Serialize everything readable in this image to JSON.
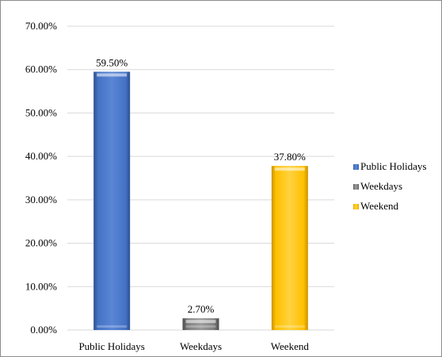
{
  "chart_data": {
    "type": "bar",
    "categories": [
      "Public Holidays",
      "Weekdays",
      "Weekend"
    ],
    "values": [
      59.5,
      2.7,
      37.8
    ],
    "data_labels": [
      "59.50%",
      "2.70%",
      "37.80%"
    ],
    "colors": [
      "#4472c4",
      "#7f7f7f",
      "#ffc000"
    ],
    "y_ticks": [
      "0.00%",
      "10.00%",
      "20.00%",
      "30.00%",
      "40.00%",
      "50.00%",
      "60.00%",
      "70.00%"
    ],
    "ylim": [
      0,
      70
    ],
    "grid": true,
    "legend": {
      "position": "right",
      "entries": [
        "Public Holidays",
        "Weekdays",
        "Weekend"
      ]
    }
  }
}
